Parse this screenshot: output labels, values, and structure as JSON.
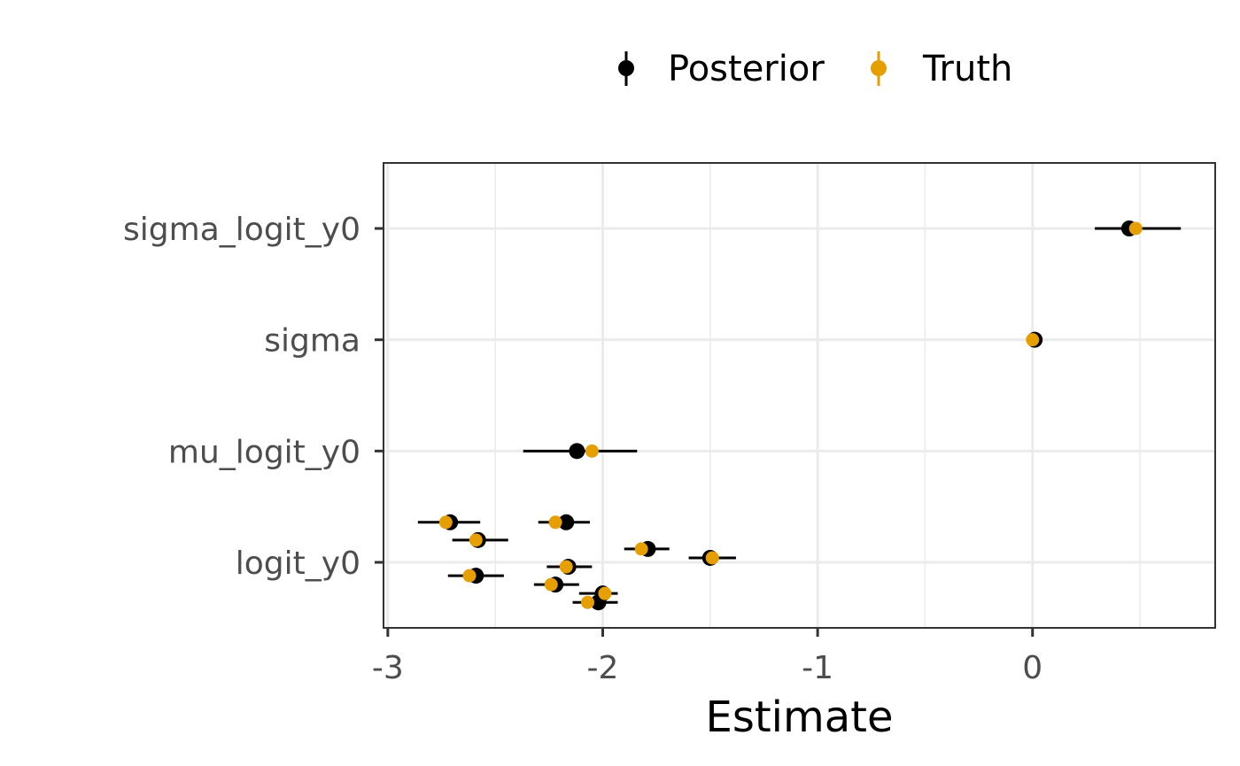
{
  "chart_data": {
    "type": "scatter",
    "subtype": "pointrange",
    "title": "",
    "xlabel": "Estimate",
    "ylabel": "",
    "xlim": [
      -3.02,
      0.85
    ],
    "x_ticks": [
      -3,
      -2,
      -1,
      0
    ],
    "x_tick_labels": [
      "-3",
      "-2",
      "-1",
      "0"
    ],
    "categories": [
      "sigma_logit_y0",
      "sigma",
      "mu_logit_y0",
      "logit_y0"
    ],
    "grid": true,
    "legend_position": "top",
    "legend": [
      "Posterior",
      "Truth"
    ],
    "colors": {
      "posterior": "#000000",
      "truth": "#E69F00",
      "grid": "#EBEBEB",
      "panel_border": "#333333",
      "tick_label": "#4D4D4D"
    },
    "series": [
      {
        "name": "Posterior",
        "kind": "point_interval",
        "points": [
          {
            "category": "sigma_logit_y0",
            "offset": 0,
            "estimate": 0.45,
            "lower": 0.29,
            "upper": 0.69
          },
          {
            "category": "sigma",
            "offset": 0,
            "estimate": 0.01,
            "lower": -0.01,
            "upper": 0.03
          },
          {
            "category": "mu_logit_y0",
            "offset": 0,
            "estimate": -2.12,
            "lower": -2.37,
            "upper": -1.84
          },
          {
            "category": "logit_y0",
            "offset": 0.36,
            "estimate": -2.71,
            "lower": -2.86,
            "upper": -2.57
          },
          {
            "category": "logit_y0",
            "offset": 0.2,
            "estimate": -2.58,
            "lower": -2.7,
            "upper": -2.44
          },
          {
            "category": "logit_y0",
            "offset": 0.36,
            "estimate": -2.17,
            "lower": -2.3,
            "upper": -2.06
          },
          {
            "category": "logit_y0",
            "offset": 0.12,
            "estimate": -1.79,
            "lower": -1.9,
            "upper": -1.69
          },
          {
            "category": "logit_y0",
            "offset": 0.04,
            "estimate": -1.5,
            "lower": -1.6,
            "upper": -1.38
          },
          {
            "category": "logit_y0",
            "offset": -0.04,
            "estimate": -2.16,
            "lower": -2.26,
            "upper": -2.05
          },
          {
            "category": "logit_y0",
            "offset": -0.12,
            "estimate": -2.59,
            "lower": -2.72,
            "upper": -2.46
          },
          {
            "category": "logit_y0",
            "offset": -0.2,
            "estimate": -2.22,
            "lower": -2.32,
            "upper": -2.11
          },
          {
            "category": "logit_y0",
            "offset": -0.28,
            "estimate": -2.0,
            "lower": -2.11,
            "upper": -1.93
          },
          {
            "category": "logit_y0",
            "offset": -0.36,
            "estimate": -2.02,
            "lower": -2.14,
            "upper": -1.93
          }
        ]
      },
      {
        "name": "Truth",
        "kind": "point",
        "points": [
          {
            "category": "sigma_logit_y0",
            "offset": 0,
            "value": 0.48
          },
          {
            "category": "sigma",
            "offset": 0,
            "value": 0.0
          },
          {
            "category": "mu_logit_y0",
            "offset": 0,
            "value": -2.05
          },
          {
            "category": "logit_y0",
            "offset": 0.36,
            "value": -2.73
          },
          {
            "category": "logit_y0",
            "offset": 0.2,
            "value": -2.59
          },
          {
            "category": "logit_y0",
            "offset": 0.36,
            "value": -2.22
          },
          {
            "category": "logit_y0",
            "offset": 0.12,
            "value": -1.82
          },
          {
            "category": "logit_y0",
            "offset": 0.04,
            "value": -1.49
          },
          {
            "category": "logit_y0",
            "offset": -0.04,
            "value": -2.17
          },
          {
            "category": "logit_y0",
            "offset": -0.12,
            "value": -2.62
          },
          {
            "category": "logit_y0",
            "offset": -0.2,
            "value": -2.24
          },
          {
            "category": "logit_y0",
            "offset": -0.28,
            "value": -1.99
          },
          {
            "category": "logit_y0",
            "offset": -0.36,
            "value": -2.07
          }
        ]
      }
    ]
  }
}
